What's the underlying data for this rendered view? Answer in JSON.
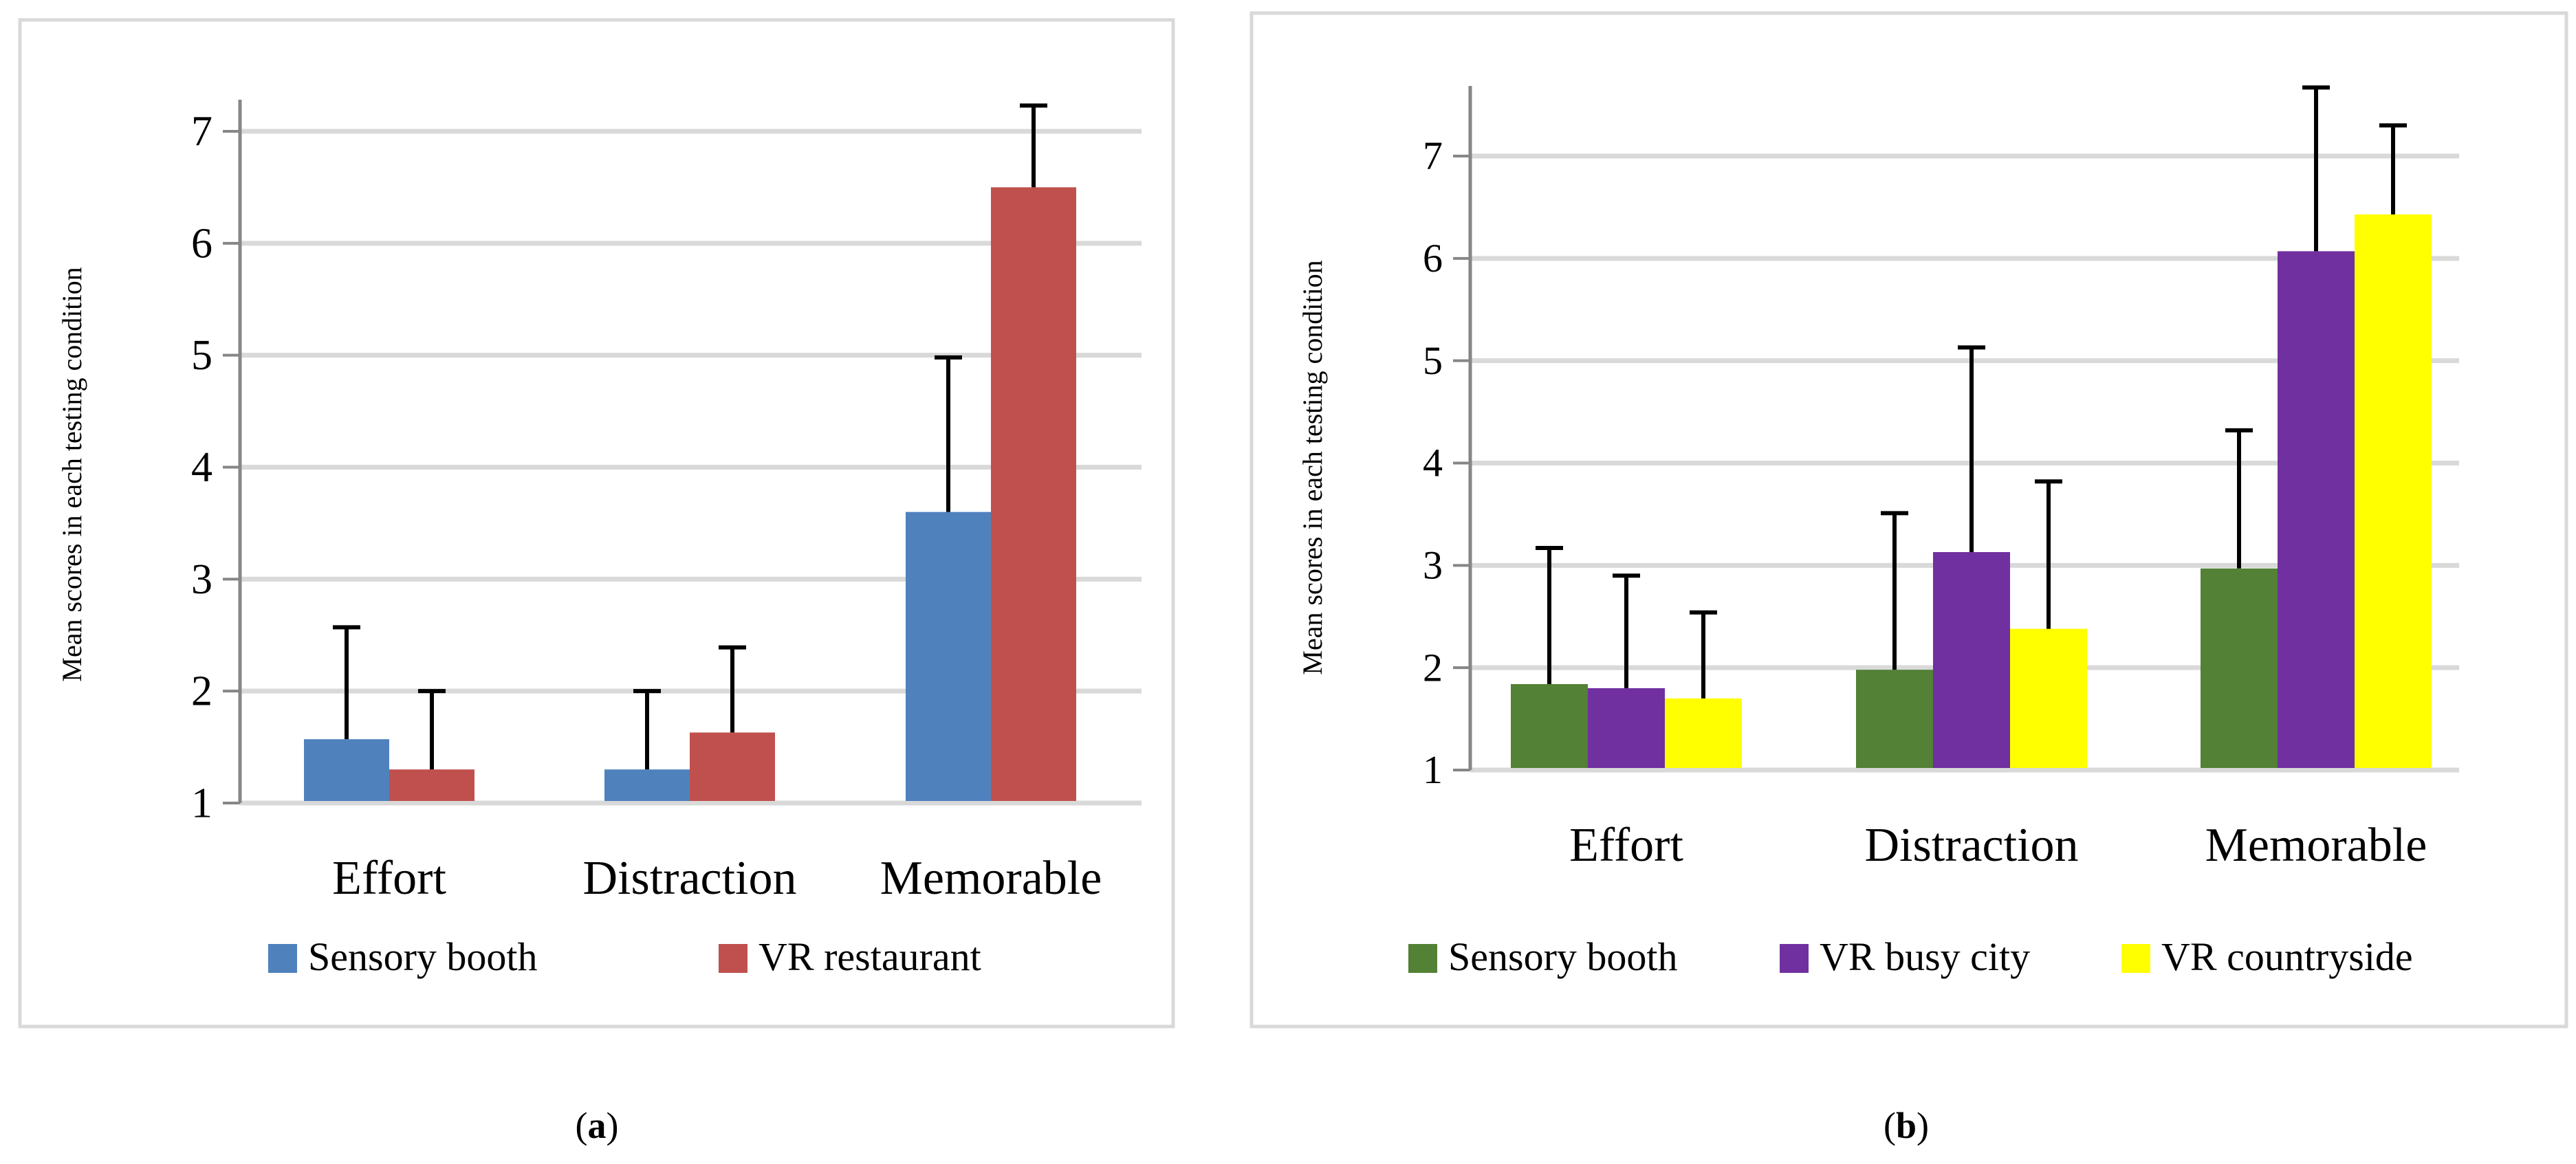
{
  "chart_data": [
    {
      "type": "bar",
      "panel_label": "a",
      "ylabel": "Mean scores in each testing condition",
      "categories": [
        "Effort",
        "Distraction",
        "Memorable"
      ],
      "yticks": [
        1,
        2,
        3,
        4,
        5,
        6,
        7
      ],
      "ylim": [
        1,
        7.3
      ],
      "grid": true,
      "legend_position": "bottom",
      "series": [
        {
          "name": "Sensory booth",
          "color": "#4F81BD",
          "values": [
            1.57,
            1.3,
            3.6
          ],
          "error_upper": [
            2.57,
            2.0,
            4.98
          ]
        },
        {
          "name": "VR restaurant",
          "color": "#C0504D",
          "values": [
            1.3,
            1.63,
            6.5
          ],
          "error_upper": [
            2.0,
            2.39,
            7.23
          ]
        }
      ]
    },
    {
      "type": "bar",
      "panel_label": "b",
      "ylabel": "Mean scores in each testing condition",
      "categories": [
        "Effort",
        "Distraction",
        "Memorable"
      ],
      "yticks": [
        1,
        2,
        3,
        4,
        5,
        6,
        7
      ],
      "ylim": [
        1,
        7.7
      ],
      "grid": true,
      "legend_position": "bottom",
      "series": [
        {
          "name": "Sensory booth",
          "color": "#538135",
          "values": [
            1.84,
            1.98,
            2.97
          ],
          "error_upper": [
            3.17,
            3.51,
            4.32
          ]
        },
        {
          "name": "VR busy city",
          "color": "#7030A0",
          "values": [
            1.8,
            3.13,
            6.07
          ],
          "error_upper": [
            2.9,
            5.13,
            7.67
          ]
        },
        {
          "name": "VR countryside",
          "color": "#FFFF00",
          "values": [
            1.7,
            2.38,
            6.43
          ],
          "error_upper": [
            2.54,
            3.82,
            7.3
          ]
        }
      ]
    }
  ]
}
